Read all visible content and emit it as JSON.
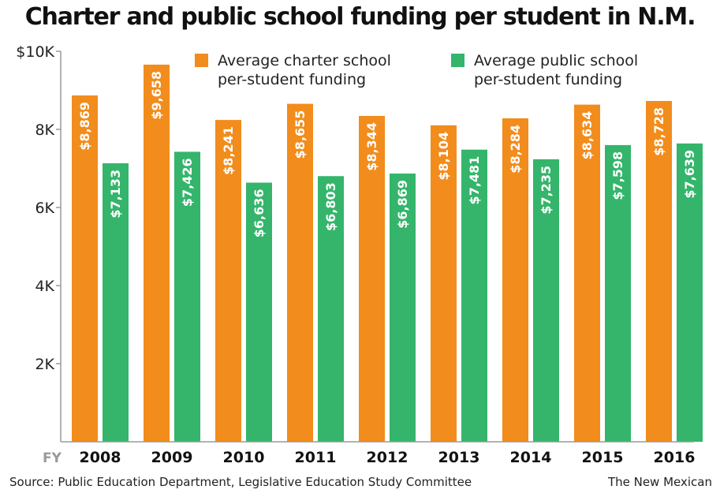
{
  "title": "Charter and public school funding per student in N.M.",
  "source": "Source: Public Education Department, Legislative Education Study Committee",
  "credit": "The New Mexican",
  "chart_data": {
    "type": "bar",
    "x_prefix": "FY",
    "categories": [
      "2008",
      "2009",
      "2010",
      "2011",
      "2012",
      "2013",
      "2014",
      "2015",
      "2016"
    ],
    "series": [
      {
        "name": "Average charter school per-student funding",
        "name_lines": [
          "Average charter school",
          "per-student funding"
        ],
        "color": "#f28c1c",
        "values": [
          8869,
          9658,
          8241,
          8655,
          8344,
          8104,
          8284,
          8634,
          8728
        ],
        "labels": [
          "$8,869",
          "$9,658",
          "$8,241",
          "$8,655",
          "$8,344",
          "$8,104",
          "$8,284",
          "$8,634",
          "$8,728"
        ]
      },
      {
        "name": "Average public school per-student funding",
        "name_lines": [
          "Average public school",
          "per-student funding"
        ],
        "color": "#34b56b",
        "values": [
          7133,
          7426,
          6636,
          6803,
          6869,
          7481,
          7235,
          7598,
          7639
        ],
        "labels": [
          "$7,133",
          "$7,426",
          "$6,636",
          "$6,803",
          "$6,869",
          "$7,481",
          "$7,235",
          "$7,598",
          "$7,639"
        ]
      }
    ],
    "ylim": [
      0,
      10000
    ],
    "yticks": [
      {
        "value": 2000,
        "label": "2K"
      },
      {
        "value": 4000,
        "label": "4K"
      },
      {
        "value": 6000,
        "label": "6K"
      },
      {
        "value": 8000,
        "label": "8K"
      },
      {
        "value": 10000,
        "label": "$10K"
      }
    ],
    "grid": false,
    "legend_position": "top"
  }
}
